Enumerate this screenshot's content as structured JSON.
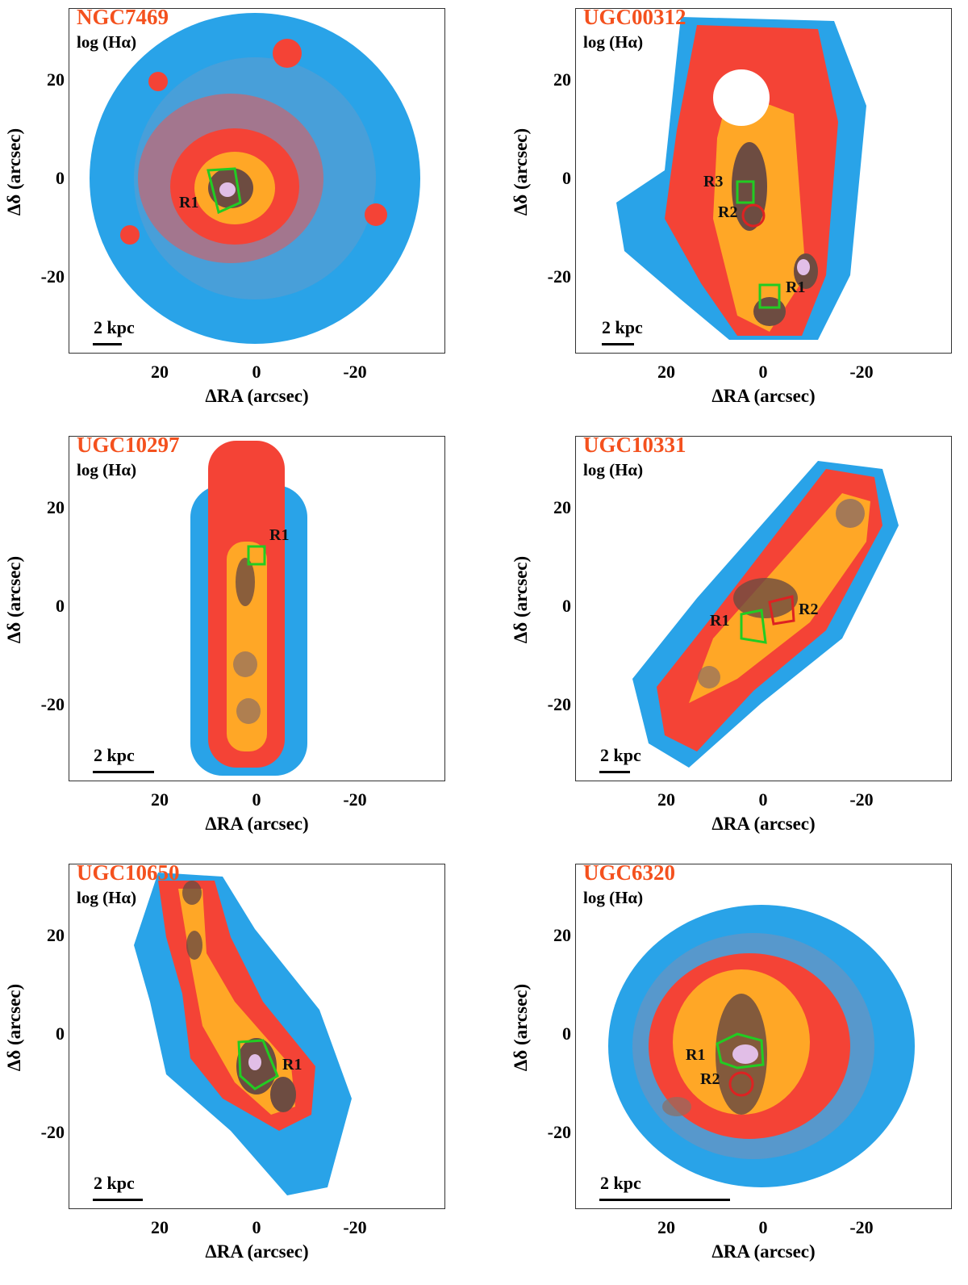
{
  "colors": {
    "low": "#1e88e5",
    "mid": "#f44336",
    "high": "#ffa726",
    "core": "#6d4c41",
    "peak": "#e1bee7",
    "green": "#22cc22",
    "red": "#dd2222"
  },
  "axes": {
    "xlabel": "ΔRA (arcsec)",
    "ylabel": "Δδ (arcsec)",
    "xticks": [
      "20",
      "0",
      "-20"
    ],
    "yticks": [
      "20",
      "0",
      "-20"
    ]
  },
  "panels": [
    {
      "title": "NGC7469",
      "subtitle": "log (Hα)",
      "scale": "2 kpc",
      "regions": [
        "R1"
      ]
    },
    {
      "title": "UGC00312",
      "subtitle": "log (Hα)",
      "scale": "2 kpc",
      "regions": [
        "R3",
        "R2",
        "R1"
      ]
    },
    {
      "title": "UGC10297",
      "subtitle": "log (Hα)",
      "scale": "2 kpc",
      "regions": [
        "R1"
      ]
    },
    {
      "title": "UGC10331",
      "subtitle": "log (Hα)",
      "scale": "2 kpc",
      "regions": [
        "R1",
        "R2"
      ]
    },
    {
      "title": "UGC10650",
      "subtitle": "log (Hα)",
      "scale": "2 kpc",
      "regions": [
        "R1"
      ]
    },
    {
      "title": "UGC6320",
      "subtitle": "log (Hα)",
      "scale": "2 kpc",
      "regions": [
        "R1",
        "R2"
      ]
    }
  ]
}
